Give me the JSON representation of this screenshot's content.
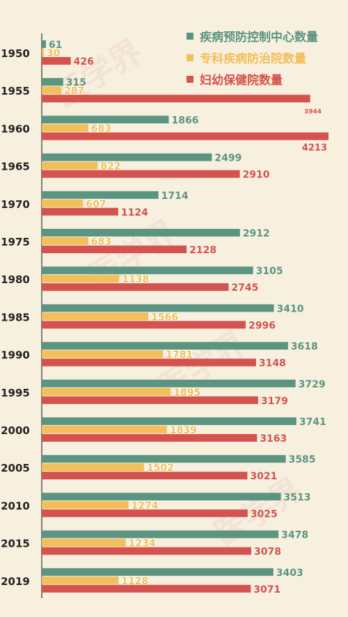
{
  "colors": {
    "background": "#f7f0df",
    "disease_control": "#5c9482",
    "specialty": "#f2bf5a",
    "maternal_child": "#d4534e",
    "axis": "#333333"
  },
  "watermark_text": "医学界",
  "legend": [
    {
      "label": "疾病预防控制中心数量",
      "color": "#5c9482"
    },
    {
      "label": "专科疾病防治院数量",
      "color": "#f2bf5a"
    },
    {
      "label": "妇幼保健院数量",
      "color": "#d4534e"
    }
  ],
  "chart_data": {
    "type": "bar",
    "orientation": "horizontal",
    "categories": [
      "1950",
      "1955",
      "1960",
      "1965",
      "1970",
      "1975",
      "1980",
      "1985",
      "1990",
      "1995",
      "2000",
      "2005",
      "2010",
      "2015",
      "2019"
    ],
    "series": [
      {
        "name": "疾病预防控制中心数量",
        "color": "#5c9482",
        "values": [
          61,
          315,
          1866,
          2499,
          1714,
          2912,
          3105,
          3410,
          3618,
          3729,
          3741,
          3585,
          3513,
          3478,
          3403
        ]
      },
      {
        "name": "专科疾病防治院数量",
        "color": "#f2bf5a",
        "values": [
          30,
          287,
          683,
          822,
          607,
          683,
          1138,
          1566,
          1781,
          1895,
          1839,
          1502,
          1274,
          1234,
          1128
        ]
      },
      {
        "name": "妇幼保健院数量",
        "color": "#d4534e",
        "values": [
          426,
          3944,
          4213,
          2910,
          1124,
          2128,
          2745,
          2996,
          3148,
          3179,
          3163,
          3021,
          3025,
          3078,
          3071
        ]
      }
    ],
    "xlim": [
      0,
      4213
    ],
    "grid": false,
    "legend_position": "top-right"
  }
}
